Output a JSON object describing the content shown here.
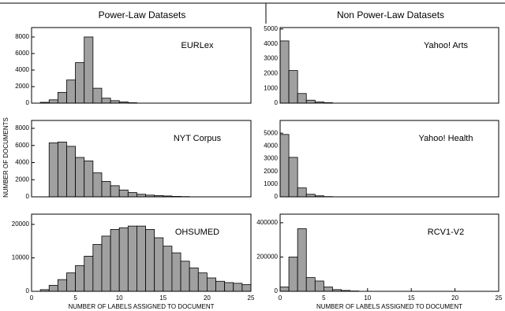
{
  "headers": [
    "Power-Law Datasets",
    "Non Power-Law Datasets"
  ],
  "y_label": "NUMBER OF DOCUMENTS",
  "chart_data": [
    {
      "type": "histogram",
      "label": "EURLex",
      "color": "#a0a0a0",
      "bins": [
        1,
        2,
        3,
        4,
        5,
        6,
        7,
        8,
        9,
        10,
        11,
        12
      ],
      "values": [
        100,
        400,
        1300,
        2800,
        4900,
        8000,
        1800,
        600,
        300,
        150,
        50
      ],
      "xlim": [
        0,
        25
      ],
      "ylim": [
        0,
        9140
      ],
      "yticks": [
        0,
        2000,
        4000,
        6000,
        8000
      ]
    },
    {
      "type": "histogram",
      "label": "NYT Corpus",
      "color": "#a0a0a0",
      "bins": [
        2,
        3,
        4,
        5,
        6,
        7,
        8,
        9,
        10,
        11,
        12,
        13,
        14,
        15,
        16,
        17,
        18
      ],
      "values": [
        6300,
        6400,
        5900,
        4600,
        4200,
        2800,
        1800,
        1300,
        800,
        500,
        300,
        200,
        150,
        100,
        50,
        30
      ],
      "xlim": [
        0,
        25
      ],
      "ylim": [
        0,
        8920
      ],
      "yticks": [
        0,
        2000,
        4000,
        6000,
        8000
      ]
    },
    {
      "type": "histogram",
      "label": "OHSUMED",
      "color": "#a0a0a0",
      "bins": [
        1,
        2,
        3,
        4,
        5,
        6,
        7,
        8,
        9,
        10,
        11,
        12,
        13,
        14,
        15,
        16,
        17,
        18,
        19,
        20,
        21,
        22,
        23,
        24,
        25
      ],
      "values": [
        500,
        1800,
        3500,
        5500,
        7700,
        10500,
        14000,
        16500,
        18500,
        19000,
        19500,
        19500,
        18500,
        16000,
        13500,
        11500,
        9000,
        7000,
        5500,
        4000,
        3000,
        2600,
        2400,
        2000
      ],
      "xlim": [
        0,
        25
      ],
      "ylim": [
        0,
        23060
      ],
      "yticks": [
        0,
        10000,
        20000
      ],
      "xticks": [
        0,
        5,
        10,
        15,
        20,
        25
      ],
      "xlabel": "NUMBER OF LABELS ASSIGNED TO DOCUMENT"
    },
    {
      "type": "histogram",
      "label": "Yahoo! Arts",
      "color": "#a0a0a0",
      "bins": [
        0,
        1,
        2,
        3,
        4,
        5,
        6
      ],
      "values": [
        4200,
        2200,
        650,
        200,
        80,
        30
      ],
      "xlim": [
        0,
        25
      ],
      "ylim": [
        0,
        5100
      ],
      "yticks": [
        0,
        1000,
        2000,
        3000,
        4000,
        5000
      ]
    },
    {
      "type": "histogram",
      "label": "Yahoo! Health",
      "color": "#a0a0a0",
      "bins": [
        0,
        1,
        2,
        3,
        4,
        5,
        6
      ],
      "values": [
        4900,
        3100,
        700,
        200,
        80,
        20
      ],
      "xlim": [
        0,
        25
      ],
      "ylim": [
        0,
        6000
      ],
      "yticks": [
        0,
        1000,
        2000,
        3000,
        4000,
        5000
      ]
    },
    {
      "type": "histogram",
      "label": "RCV1-V2",
      "color": "#a0a0a0",
      "bins": [
        0,
        1,
        2,
        3,
        4,
        5,
        6,
        7,
        8,
        9
      ],
      "values": [
        25000,
        200000,
        365000,
        80000,
        60000,
        25000,
        10000,
        5000,
        2000
      ],
      "xlim": [
        0,
        25
      ],
      "ylim": [
        0,
        450000
      ],
      "yticks": [
        0,
        200000,
        400000
      ],
      "xticks": [
        0,
        5,
        10,
        15,
        20,
        25
      ],
      "xlabel": "NUMBER OF LABELS ASSIGNED TO DOCUMENT"
    }
  ]
}
